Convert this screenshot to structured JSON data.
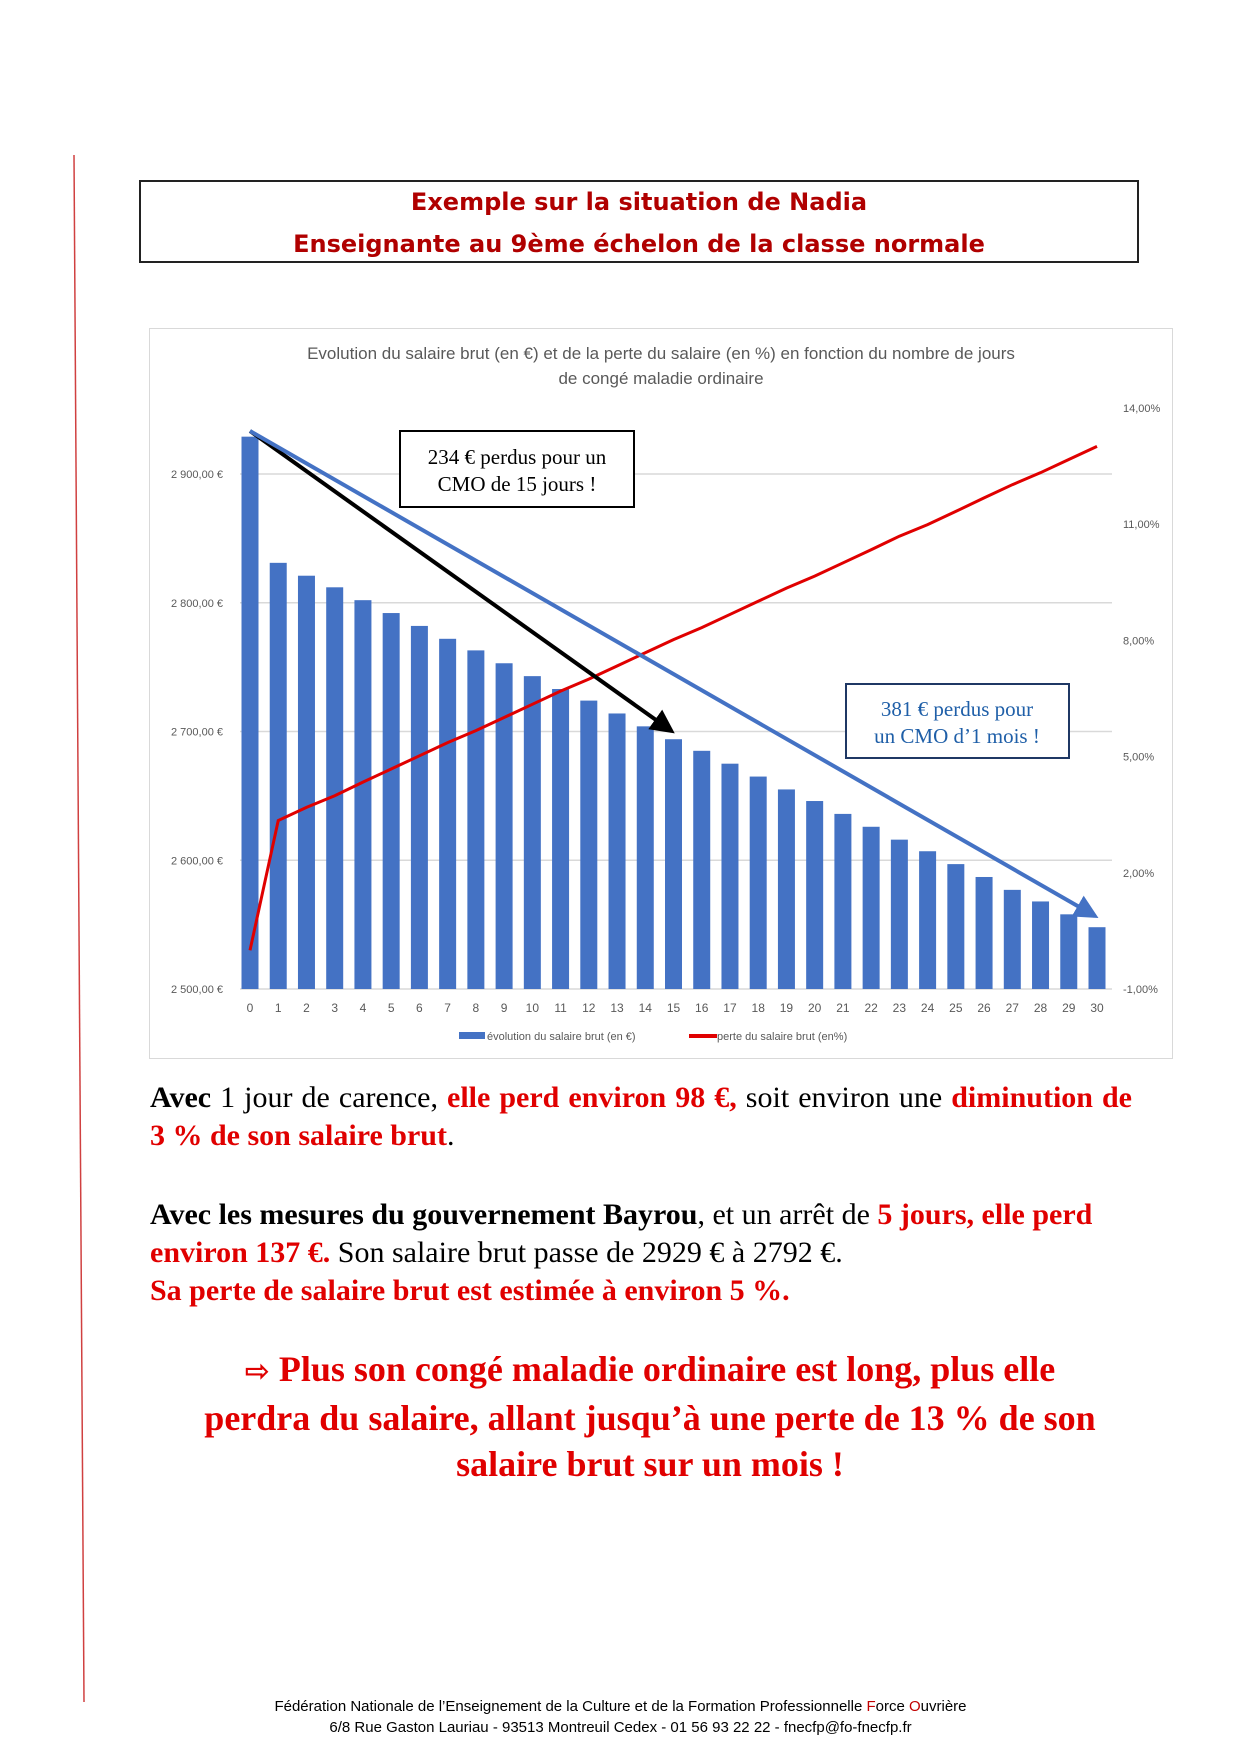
{
  "header": {
    "line1": "Exemple sur la situation de Nadia",
    "line2": "Enseignante au 9ème échelon de la classe normale"
  },
  "chart_data": {
    "type": "bar+line",
    "title_line1": "Evolution du salaire brut (en €) et de la perte du salaire (en %) en fonction du nombre de jours",
    "title_line2": "de congé maladie ordinaire",
    "categories": [
      0,
      1,
      2,
      3,
      4,
      5,
      6,
      7,
      8,
      9,
      10,
      11,
      12,
      13,
      14,
      15,
      16,
      17,
      18,
      19,
      20,
      21,
      22,
      23,
      24,
      25,
      26,
      27,
      28,
      29,
      30
    ],
    "series": [
      {
        "name": "évolution du salaire brut (en €)",
        "type": "bar",
        "axis": "left",
        "color": "#4472c4",
        "values": [
          2929,
          2831,
          2821,
          2812,
          2802,
          2792,
          2782,
          2772,
          2763,
          2753,
          2743,
          2733,
          2724,
          2714,
          2704,
          2694,
          2685,
          2675,
          2665,
          2655,
          2646,
          2636,
          2626,
          2616,
          2607,
          2597,
          2587,
          2577,
          2568,
          2558,
          2548
        ]
      },
      {
        "name": "perte du salaire brut (en%)",
        "type": "line",
        "axis": "right",
        "color": "#e00000",
        "values": [
          0,
          3.35,
          3.69,
          3.99,
          4.34,
          4.68,
          5.02,
          5.36,
          5.67,
          6.01,
          6.35,
          6.69,
          7.0,
          7.34,
          7.68,
          8.02,
          8.33,
          8.67,
          9.01,
          9.35,
          9.66,
          10.0,
          10.34,
          10.69,
          10.99,
          11.33,
          11.68,
          12.02,
          12.33,
          12.67,
          13.01
        ]
      }
    ],
    "y_left": {
      "range": [
        2500,
        2900
      ],
      "ticks": [
        2500,
        2600,
        2700,
        2800,
        2900
      ],
      "tick_labels": [
        "2 500,00 €",
        "2 600,00 €",
        "2 700,00 €",
        "2 800,00 €",
        "2 900,00 €"
      ]
    },
    "y_right": {
      "range": [
        -1,
        14
      ],
      "ticks": [
        -1,
        2,
        5,
        8,
        11,
        14
      ],
      "tick_labels": [
        "-1,00%",
        "2,00%",
        "5,00%",
        "8,00%",
        "11,00%",
        "14,00%"
      ]
    },
    "grid": true,
    "legend": "bottom",
    "annotations": [
      {
        "text_line1": "234 € perdus pour un",
        "text_line2": "CMO de 15 jours !",
        "color": "#000000",
        "arrow_from_day": 0,
        "arrow_to_day": 15
      },
      {
        "text_line1": "381 € perdus pour",
        "text_line2": "un CMO d’1 mois !",
        "color": "#1f5fa8",
        "arrow_from_day": 0,
        "arrow_to_day": 30
      }
    ]
  },
  "body": {
    "p1": {
      "a": "Avec",
      "b": " 1 jour de carence, ",
      "c": "elle perd environ 98 €,",
      "d": " soit environ une ",
      "e": "diminution de 3 % de son salaire brut",
      "f": "."
    },
    "p2": {
      "a": "Avec les mesures du gouvernement Bayrou",
      "b": ", et un arrêt de ",
      "c": "5 jours, elle perd environ 137 €.",
      "d": " Son salaire brut passe de 2929 € à 2792 €."
    },
    "p3": "Sa perte de salaire brut est estimée à environ 5 %.",
    "conclusion_arrow": "⇨",
    "conclusion": "Plus son congé maladie ordinaire est long, plus elle perdra du salaire, allant jusqu’à une perte de 13 % de son salaire brut sur un mois !"
  },
  "footer": {
    "line1_a": "Fédération Nationale de l’Enseignement de la Culture et de la Formation Professionnelle ",
    "line1_f": "F",
    "line1_orce": "orce ",
    "line1_o": "O",
    "line1_uvriere": "uvrière",
    "line2": "6/8 Rue Gaston Lauriau - 93513 Montreuil Cedex - 01 56 93 22 22 - fnecfp@fo-fnecfp.fr"
  }
}
